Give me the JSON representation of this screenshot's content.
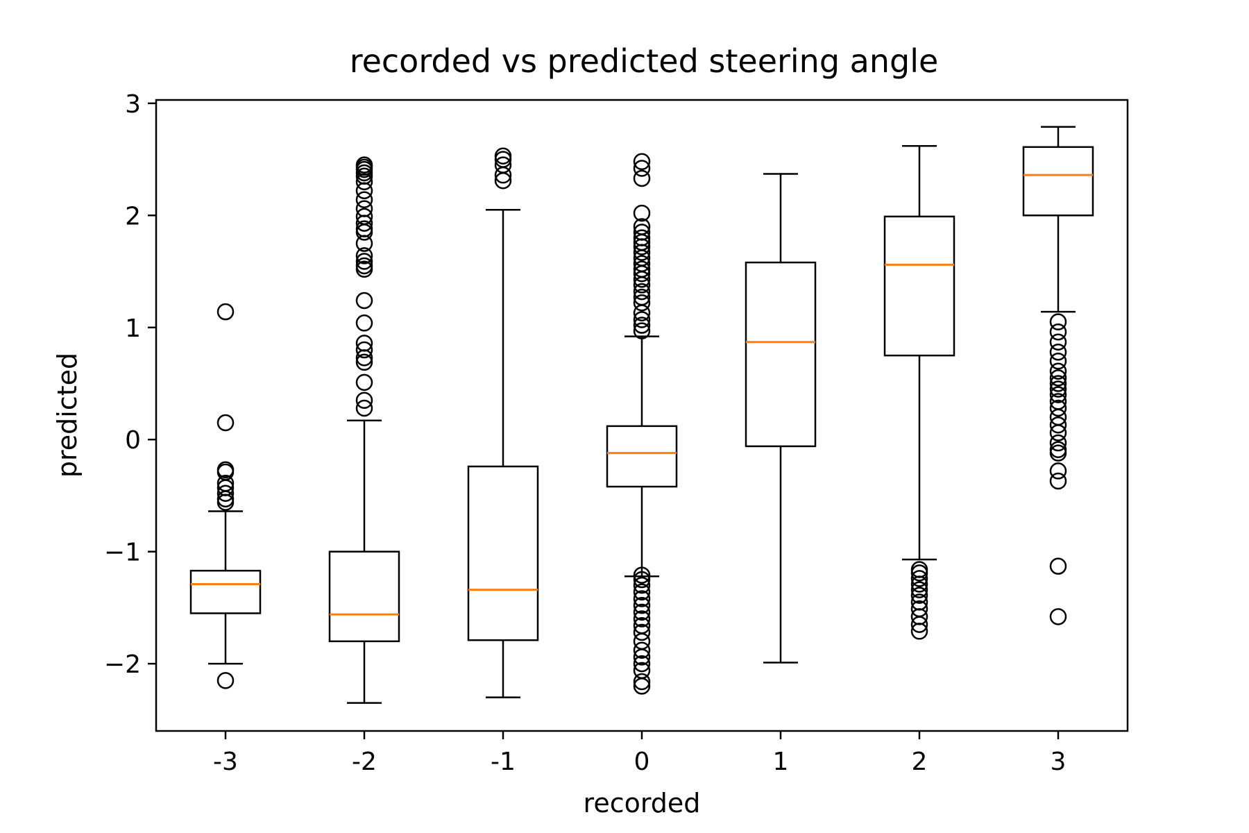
{
  "chart_data": {
    "type": "boxplot",
    "title": "recorded vs predicted steering angle",
    "xlabel": "recorded",
    "ylabel": "predicted",
    "x_ticks": [
      "-3",
      "-2",
      "-1",
      "0",
      "1",
      "2",
      "3"
    ],
    "y_ticks": [
      3,
      2,
      1,
      0,
      -1,
      -2
    ],
    "y_tick_labels": [
      "3",
      "2",
      "1",
      "0",
      "−1",
      "−2"
    ],
    "ylim": [
      -2.6,
      3.03
    ],
    "grid": false,
    "colors": {
      "box": "#000000",
      "median": "#ff7f0e",
      "flier": "#000000"
    },
    "boxes": [
      {
        "category": "-3",
        "whisker_low": -2.0,
        "q1": -1.55,
        "median": -1.29,
        "q3": -1.17,
        "whisker_high": -0.64,
        "fliers": [
          1.14,
          0.15,
          -0.27,
          -0.29,
          -0.39,
          -0.43,
          -0.48,
          -0.53,
          -0.56,
          -2.15
        ]
      },
      {
        "category": "-2",
        "whisker_low": -2.35,
        "q1": -1.8,
        "median": -1.56,
        "q3": -1.0,
        "whisker_high": 0.17,
        "fliers": [
          2.45,
          2.43,
          2.41,
          2.38,
          2.35,
          2.3,
          2.22,
          2.14,
          2.06,
          1.99,
          1.93,
          1.88,
          1.85,
          1.75,
          1.64,
          1.59,
          1.55,
          1.52,
          1.24,
          1.04,
          0.86,
          0.8,
          0.73,
          0.69,
          0.51,
          0.35,
          0.28
        ]
      },
      {
        "category": "-1",
        "whisker_low": -2.3,
        "q1": -1.79,
        "median": -1.34,
        "q3": -0.24,
        "whisker_high": 2.05,
        "fliers": [
          2.53,
          2.5,
          2.45,
          2.36,
          2.31
        ]
      },
      {
        "category": "0",
        "whisker_low": -1.22,
        "q1": -0.42,
        "median": -0.12,
        "q3": 0.12,
        "whisker_high": 0.92,
        "fliers": [
          2.48,
          2.42,
          2.33,
          2.02,
          1.9,
          1.85,
          1.8,
          1.76,
          1.72,
          1.67,
          1.62,
          1.57,
          1.52,
          1.48,
          1.43,
          1.38,
          1.32,
          1.27,
          1.22,
          1.13,
          1.07,
          1.02,
          0.97,
          -1.21,
          -1.25,
          -1.3,
          -1.36,
          -1.42,
          -1.48,
          -1.54,
          -1.6,
          -1.66,
          -1.72,
          -1.8,
          -1.88,
          -1.94,
          -2.0,
          -2.06,
          -2.16,
          -2.2
        ]
      },
      {
        "category": "1",
        "whisker_low": -1.99,
        "q1": -0.06,
        "median": 0.87,
        "q3": 1.58,
        "whisker_high": 2.37,
        "fliers": []
      },
      {
        "category": "2",
        "whisker_low": -1.07,
        "q1": 0.75,
        "median": 1.56,
        "q3": 1.99,
        "whisker_high": 2.62,
        "fliers": [
          -1.16,
          -1.19,
          -1.24,
          -1.29,
          -1.34,
          -1.39,
          -1.45,
          -1.51,
          -1.58,
          -1.65,
          -1.71
        ]
      },
      {
        "category": "3",
        "whisker_low": 1.14,
        "q1": 2.0,
        "median": 2.36,
        "q3": 2.61,
        "whisker_high": 2.79,
        "fliers": [
          1.05,
          0.96,
          0.87,
          0.78,
          0.7,
          0.61,
          0.55,
          0.5,
          0.45,
          0.4,
          0.34,
          0.28,
          0.2,
          0.13,
          0.06,
          -0.03,
          -0.09,
          -0.12,
          -0.28,
          -0.37,
          -1.13,
          -1.58
        ]
      }
    ]
  }
}
